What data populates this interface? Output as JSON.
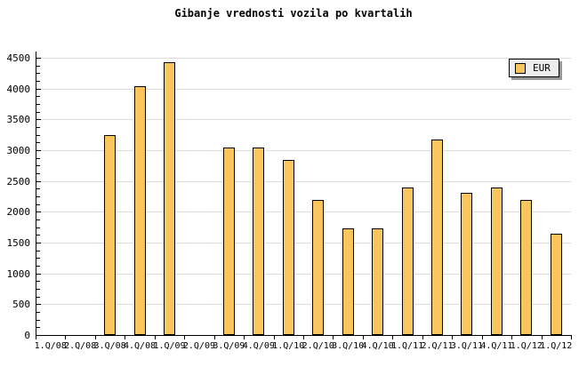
{
  "page": {
    "title": "Gibanje vrednosti vozila po kvartalih"
  },
  "legend": {
    "label": "EUR"
  },
  "chart_data": {
    "type": "bar",
    "title": "Gibanje vrednosti vozila po kvartalih",
    "categories": [
      "1.Q/08",
      "2.Q/08",
      "3.Q/08",
      "4.Q/08",
      "1.Q/09",
      "2.Q/09",
      "3.Q/09",
      "4.Q/09",
      "1.Q/10",
      "2.Q/10",
      "3.Q/10",
      "4.Q/10",
      "1.Q/11",
      "2.Q/11",
      "3.Q/11",
      "4.Q/11",
      "1.Q/12",
      "1.Q/12"
    ],
    "series": [
      {
        "name": "EUR",
        "values": [
          null,
          null,
          3240,
          4040,
          4430,
          null,
          3050,
          3050,
          2840,
          2190,
          1730,
          1730,
          2390,
          3170,
          2310,
          2390,
          2190,
          1650
        ]
      }
    ],
    "xlabel": "",
    "ylabel": "",
    "ylim": [
      0,
      4500
    ],
    "yticks": [
      0,
      500,
      1000,
      1500,
      2000,
      2500,
      3000,
      3500,
      4000,
      4500
    ],
    "y_minor_tick_step": 125,
    "grid": "horizontal-major",
    "legend_position": "top-right",
    "colors": {
      "bar_fill": "#FBC55E",
      "bar_border": "#000000",
      "grid": "#DCDCDC",
      "axis": "#000000",
      "text": "#000000",
      "background": "#FFFFFF",
      "legend_bg": "#EDEDED",
      "legend_shadow": "#979797"
    }
  }
}
